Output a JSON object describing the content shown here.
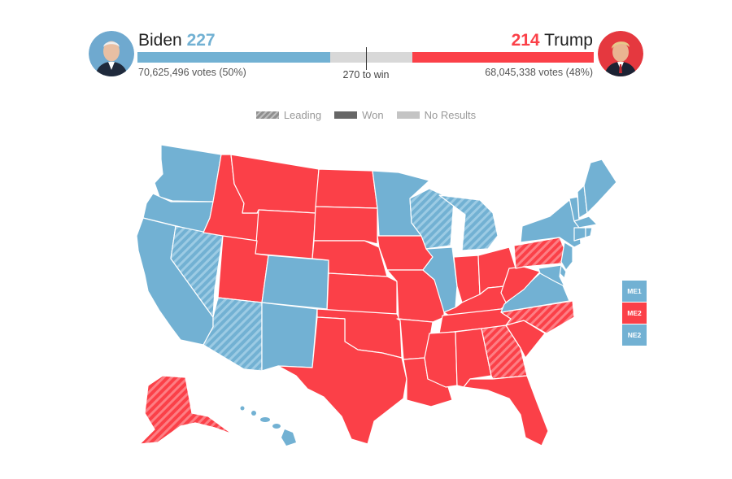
{
  "colors": {
    "dem": "#72b1d3",
    "rep": "#fb4048",
    "no_results": "#d8d8d8",
    "won": "#666666",
    "leading": "#8f8f8f"
  },
  "header": {
    "dem": {
      "name": "Biden",
      "electoral_votes": "227",
      "popular_votes": "70,625,496 votes (50%)",
      "avatar_icon": "biden-portrait"
    },
    "rep": {
      "name": "Trump",
      "electoral_votes": "214",
      "popular_votes": "68,045,338 votes (48%)",
      "avatar_icon": "trump-portrait"
    },
    "threshold_label": "270 to win",
    "total_electoral_votes": 538
  },
  "legend": {
    "leading": "Leading",
    "won": "Won",
    "no_results": "No Results"
  },
  "districts": [
    {
      "label": "ME1",
      "party": "dem"
    },
    {
      "label": "ME2",
      "party": "rep"
    },
    {
      "label": "NE2",
      "party": "dem"
    }
  ],
  "states": {
    "WA": {
      "party": "dem",
      "status": "won"
    },
    "OR": {
      "party": "dem",
      "status": "won"
    },
    "CA": {
      "party": "dem",
      "status": "won"
    },
    "NV": {
      "party": "dem",
      "status": "leading"
    },
    "ID": {
      "party": "rep",
      "status": "won"
    },
    "MT": {
      "party": "rep",
      "status": "won"
    },
    "WY": {
      "party": "rep",
      "status": "won"
    },
    "UT": {
      "party": "rep",
      "status": "won"
    },
    "AZ": {
      "party": "dem",
      "status": "leading"
    },
    "CO": {
      "party": "dem",
      "status": "won"
    },
    "NM": {
      "party": "dem",
      "status": "won"
    },
    "ND": {
      "party": "rep",
      "status": "won"
    },
    "SD": {
      "party": "rep",
      "status": "won"
    },
    "NE": {
      "party": "rep",
      "status": "won"
    },
    "KS": {
      "party": "rep",
      "status": "won"
    },
    "OK": {
      "party": "rep",
      "status": "won"
    },
    "TX": {
      "party": "rep",
      "status": "won"
    },
    "MN": {
      "party": "dem",
      "status": "won"
    },
    "IA": {
      "party": "rep",
      "status": "won"
    },
    "MO": {
      "party": "rep",
      "status": "won"
    },
    "AR": {
      "party": "rep",
      "status": "won"
    },
    "LA": {
      "party": "rep",
      "status": "won"
    },
    "WI": {
      "party": "dem",
      "status": "leading"
    },
    "IL": {
      "party": "dem",
      "status": "won"
    },
    "MI": {
      "party": "dem",
      "status": "leading"
    },
    "IN": {
      "party": "rep",
      "status": "won"
    },
    "OH": {
      "party": "rep",
      "status": "won"
    },
    "KY": {
      "party": "rep",
      "status": "won"
    },
    "TN": {
      "party": "rep",
      "status": "won"
    },
    "MS": {
      "party": "rep",
      "status": "won"
    },
    "AL": {
      "party": "rep",
      "status": "won"
    },
    "GA": {
      "party": "rep",
      "status": "leading"
    },
    "FL": {
      "party": "rep",
      "status": "won"
    },
    "SC": {
      "party": "rep",
      "status": "won"
    },
    "NC": {
      "party": "rep",
      "status": "leading"
    },
    "VA": {
      "party": "dem",
      "status": "won"
    },
    "WV": {
      "party": "rep",
      "status": "won"
    },
    "PA": {
      "party": "rep",
      "status": "leading"
    },
    "NY": {
      "party": "dem",
      "status": "won"
    },
    "VT": {
      "party": "dem",
      "status": "won"
    },
    "NH": {
      "party": "dem",
      "status": "won"
    },
    "ME": {
      "party": "dem",
      "status": "won"
    },
    "MA": {
      "party": "dem",
      "status": "won"
    },
    "CT": {
      "party": "dem",
      "status": "won"
    },
    "RI": {
      "party": "dem",
      "status": "won"
    },
    "NJ": {
      "party": "dem",
      "status": "won"
    },
    "DE": {
      "party": "dem",
      "status": "won"
    },
    "MD": {
      "party": "dem",
      "status": "won"
    },
    "AK": {
      "party": "rep",
      "status": "leading"
    },
    "HI": {
      "party": "dem",
      "status": "won"
    }
  }
}
